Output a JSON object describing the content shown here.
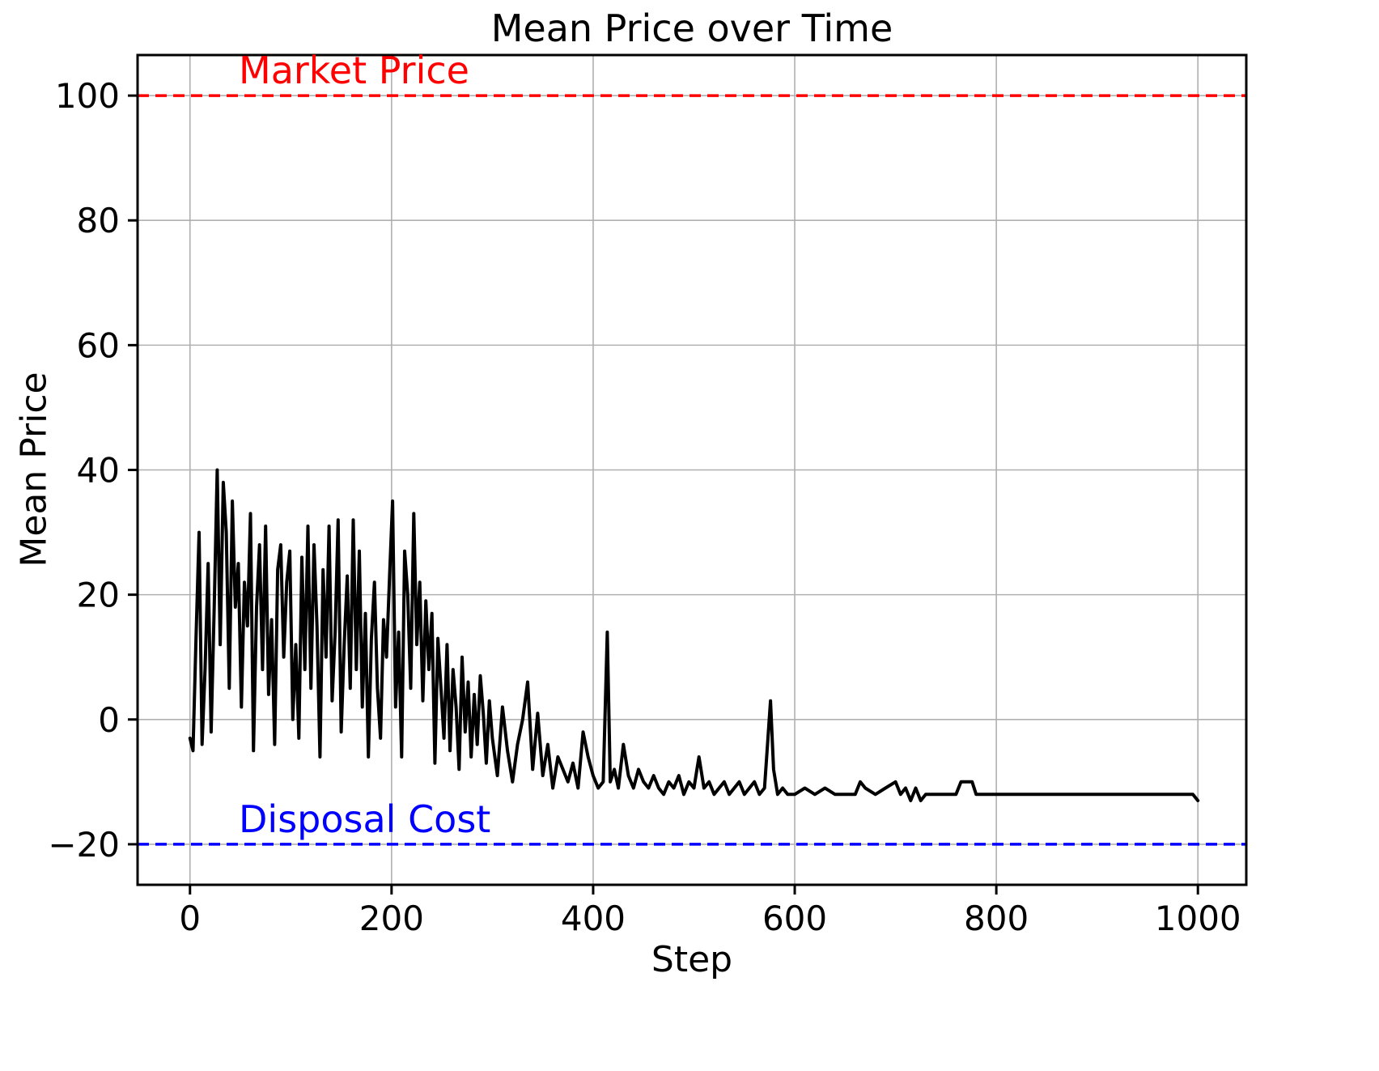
{
  "figure": {
    "title": "Mean Price over Time",
    "xlabel": "Step",
    "ylabel": "Mean Price"
  },
  "annotations": {
    "market_price": {
      "label": "Market Price",
      "color": "#ff0000"
    },
    "disposal_cost": {
      "label": "Disposal Cost",
      "color": "#0000ff"
    }
  },
  "chart_data": {
    "type": "line",
    "title": "Mean Price over Time",
    "xlabel": "Step",
    "ylabel": "Mean Price",
    "xlim": [
      -52,
      1048
    ],
    "ylim": [
      -26.5,
      106.5
    ],
    "xticks": [
      0,
      200,
      400,
      600,
      800,
      1000
    ],
    "yticks": [
      -20,
      0,
      20,
      40,
      60,
      80,
      100
    ],
    "grid": true,
    "grid_color": "#b0b0b0",
    "legend": "none",
    "reference_lines": [
      {
        "label": "Market Price",
        "value": 100,
        "color": "#ff0000",
        "style": "dashed",
        "label_x": 50
      },
      {
        "label": "Disposal Cost",
        "value": -20,
        "color": "#0000ff",
        "style": "dashed",
        "label_x": 50
      }
    ],
    "series": [
      {
        "name": "Mean Price",
        "color": "#000000",
        "points": [
          [
            0,
            -3
          ],
          [
            3,
            -5
          ],
          [
            6,
            13
          ],
          [
            9,
            30
          ],
          [
            12,
            -4
          ],
          [
            15,
            8
          ],
          [
            18,
            25
          ],
          [
            21,
            -2
          ],
          [
            24,
            18
          ],
          [
            27,
            40
          ],
          [
            30,
            12
          ],
          [
            33,
            38
          ],
          [
            36,
            30
          ],
          [
            39,
            5
          ],
          [
            42,
            35
          ],
          [
            45,
            18
          ],
          [
            48,
            25
          ],
          [
            51,
            2
          ],
          [
            54,
            22
          ],
          [
            57,
            15
          ],
          [
            60,
            33
          ],
          [
            63,
            -5
          ],
          [
            66,
            18
          ],
          [
            69,
            28
          ],
          [
            72,
            8
          ],
          [
            75,
            31
          ],
          [
            78,
            4
          ],
          [
            81,
            16
          ],
          [
            84,
            -4
          ],
          [
            87,
            24
          ],
          [
            90,
            28
          ],
          [
            93,
            10
          ],
          [
            96,
            22
          ],
          [
            99,
            27
          ],
          [
            102,
            0
          ],
          [
            105,
            12
          ],
          [
            108,
            -3
          ],
          [
            111,
            26
          ],
          [
            114,
            8
          ],
          [
            117,
            31
          ],
          [
            120,
            5
          ],
          [
            123,
            28
          ],
          [
            126,
            15
          ],
          [
            129,
            -6
          ],
          [
            132,
            24
          ],
          [
            135,
            10
          ],
          [
            138,
            31
          ],
          [
            141,
            3
          ],
          [
            144,
            14
          ],
          [
            147,
            32
          ],
          [
            150,
            -2
          ],
          [
            153,
            12
          ],
          [
            156,
            23
          ],
          [
            159,
            5
          ],
          [
            162,
            32
          ],
          [
            165,
            8
          ],
          [
            168,
            27
          ],
          [
            171,
            2
          ],
          [
            174,
            17
          ],
          [
            177,
            -6
          ],
          [
            180,
            13
          ],
          [
            183,
            22
          ],
          [
            186,
            5
          ],
          [
            189,
            -3
          ],
          [
            192,
            16
          ],
          [
            195,
            10
          ],
          [
            198,
            23
          ],
          [
            201,
            35
          ],
          [
            204,
            2
          ],
          [
            207,
            14
          ],
          [
            210,
            -6
          ],
          [
            213,
            27
          ],
          [
            216,
            20
          ],
          [
            219,
            5
          ],
          [
            222,
            33
          ],
          [
            225,
            12
          ],
          [
            228,
            22
          ],
          [
            231,
            3
          ],
          [
            234,
            19
          ],
          [
            237,
            8
          ],
          [
            240,
            17
          ],
          [
            243,
            -7
          ],
          [
            246,
            13
          ],
          [
            249,
            5
          ],
          [
            252,
            -3
          ],
          [
            255,
            12
          ],
          [
            258,
            -5
          ],
          [
            261,
            8
          ],
          [
            264,
            2
          ],
          [
            267,
            -8
          ],
          [
            270,
            10
          ],
          [
            273,
            -2
          ],
          [
            276,
            6
          ],
          [
            279,
            -6
          ],
          [
            282,
            4
          ],
          [
            285,
            -4
          ],
          [
            288,
            7
          ],
          [
            291,
            1
          ],
          [
            294,
            -7
          ],
          [
            297,
            3
          ],
          [
            300,
            -3
          ],
          [
            305,
            -9
          ],
          [
            310,
            2
          ],
          [
            315,
            -5
          ],
          [
            320,
            -10
          ],
          [
            325,
            -4
          ],
          [
            330,
            0
          ],
          [
            335,
            6
          ],
          [
            340,
            -8
          ],
          [
            345,
            1
          ],
          [
            350,
            -9
          ],
          [
            355,
            -4
          ],
          [
            360,
            -11
          ],
          [
            365,
            -6
          ],
          [
            370,
            -8
          ],
          [
            375,
            -10
          ],
          [
            380,
            -7
          ],
          [
            385,
            -11
          ],
          [
            390,
            -2
          ],
          [
            395,
            -6
          ],
          [
            400,
            -9
          ],
          [
            405,
            -11
          ],
          [
            410,
            -10
          ],
          [
            414,
            14
          ],
          [
            417,
            -10
          ],
          [
            421,
            -8
          ],
          [
            425,
            -11
          ],
          [
            430,
            -4
          ],
          [
            435,
            -9
          ],
          [
            440,
            -11
          ],
          [
            445,
            -8
          ],
          [
            450,
            -10
          ],
          [
            455,
            -11
          ],
          [
            460,
            -9
          ],
          [
            465,
            -11
          ],
          [
            470,
            -12
          ],
          [
            475,
            -10
          ],
          [
            480,
            -11
          ],
          [
            485,
            -9
          ],
          [
            490,
            -12
          ],
          [
            495,
            -10
          ],
          [
            500,
            -11
          ],
          [
            505,
            -6
          ],
          [
            510,
            -11
          ],
          [
            515,
            -10
          ],
          [
            520,
            -12
          ],
          [
            525,
            -11
          ],
          [
            530,
            -10
          ],
          [
            535,
            -12
          ],
          [
            540,
            -11
          ],
          [
            545,
            -10
          ],
          [
            550,
            -12
          ],
          [
            555,
            -11
          ],
          [
            560,
            -10
          ],
          [
            565,
            -12
          ],
          [
            570,
            -11
          ],
          [
            573,
            -4
          ],
          [
            576,
            3
          ],
          [
            579,
            -8
          ],
          [
            583,
            -12
          ],
          [
            588,
            -11
          ],
          [
            593,
            -12
          ],
          [
            600,
            -12
          ],
          [
            610,
            -11
          ],
          [
            620,
            -12
          ],
          [
            630,
            -11
          ],
          [
            640,
            -12
          ],
          [
            650,
            -12
          ],
          [
            660,
            -12
          ],
          [
            665,
            -10
          ],
          [
            670,
            -11
          ],
          [
            680,
            -12
          ],
          [
            690,
            -11
          ],
          [
            700,
            -10
          ],
          [
            705,
            -12
          ],
          [
            710,
            -11
          ],
          [
            715,
            -13
          ],
          [
            720,
            -11
          ],
          [
            725,
            -13
          ],
          [
            730,
            -12
          ],
          [
            740,
            -12
          ],
          [
            750,
            -12
          ],
          [
            760,
            -12
          ],
          [
            765,
            -10
          ],
          [
            770,
            -10
          ],
          [
            776,
            -10
          ],
          [
            780,
            -12
          ],
          [
            790,
            -12
          ],
          [
            800,
            -12
          ],
          [
            820,
            -12
          ],
          [
            840,
            -12
          ],
          [
            860,
            -12
          ],
          [
            880,
            -12
          ],
          [
            900,
            -12
          ],
          [
            920,
            -12
          ],
          [
            940,
            -12
          ],
          [
            960,
            -12
          ],
          [
            980,
            -12
          ],
          [
            995,
            -12
          ],
          [
            1000,
            -13
          ]
        ]
      }
    ]
  }
}
